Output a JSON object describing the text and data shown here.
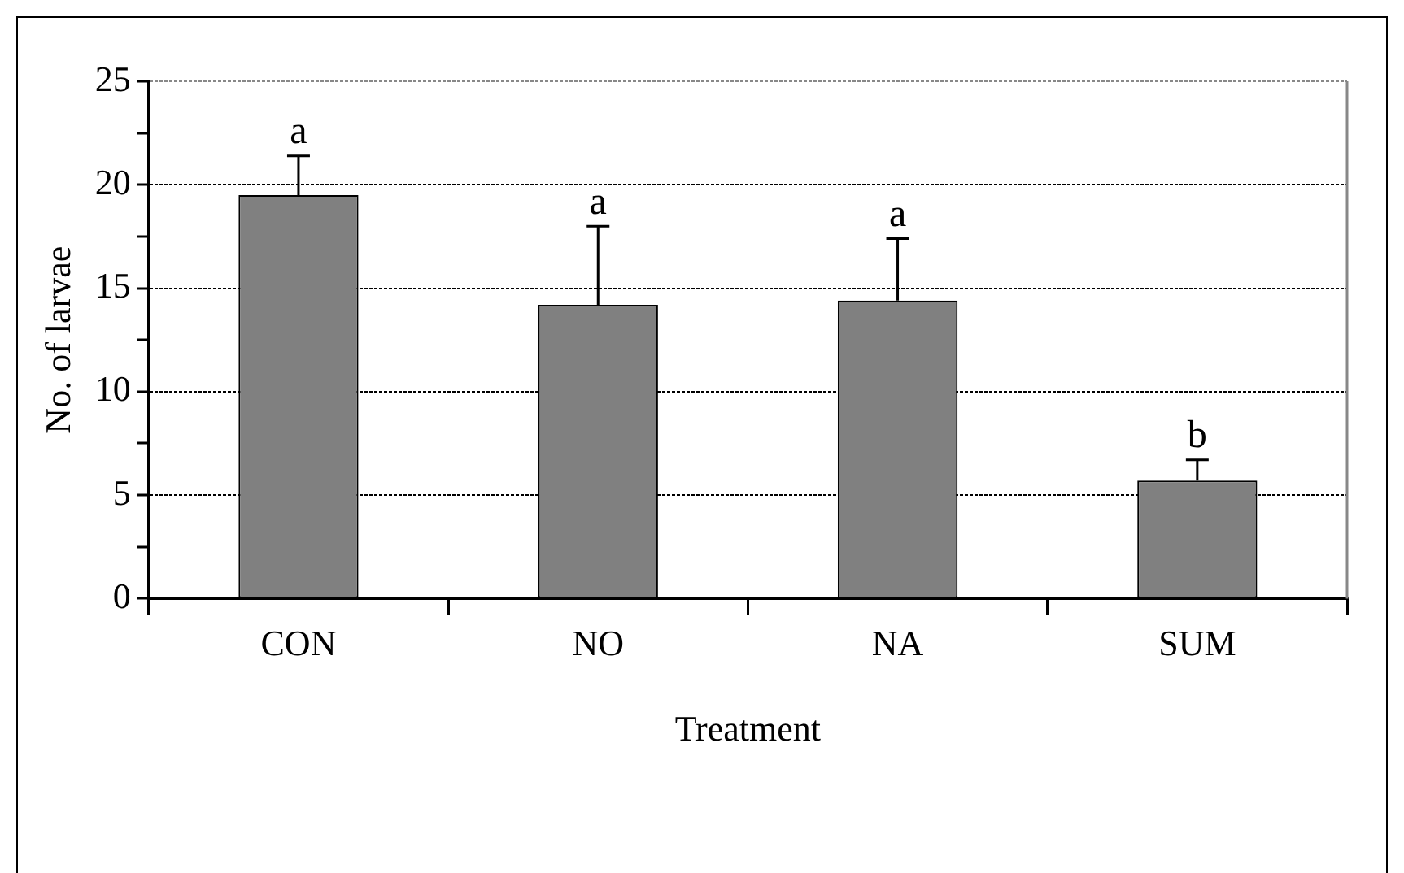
{
  "chart_data": {
    "type": "bar",
    "xlabel": "Treatment",
    "ylabel": "No. of larvae",
    "categories": [
      "CON",
      "NO",
      "NA",
      "SUM"
    ],
    "values": [
      19.5,
      14.2,
      14.4,
      5.7
    ],
    "errors": [
      [
        19.5,
        21.4
      ],
      [
        14.2,
        18.0
      ],
      [
        14.4,
        17.4
      ],
      [
        5.7,
        6.7
      ]
    ],
    "color": "#808080",
    "ylim": [
      0,
      25
    ],
    "yticks": [
      0,
      {
        "value": 2.5,
        "label": null
      },
      5,
      {
        "value": 7.5,
        "label": null
      },
      10,
      {
        "value": 12.5,
        "label": null
      },
      15,
      {
        "value": 17.5,
        "label": null
      },
      20,
      {
        "value": 22.5,
        "label": null
      },
      25
    ],
    "grid": "y",
    "legend": false,
    "annotations": [
      "a",
      "a",
      "a",
      "b"
    ]
  }
}
